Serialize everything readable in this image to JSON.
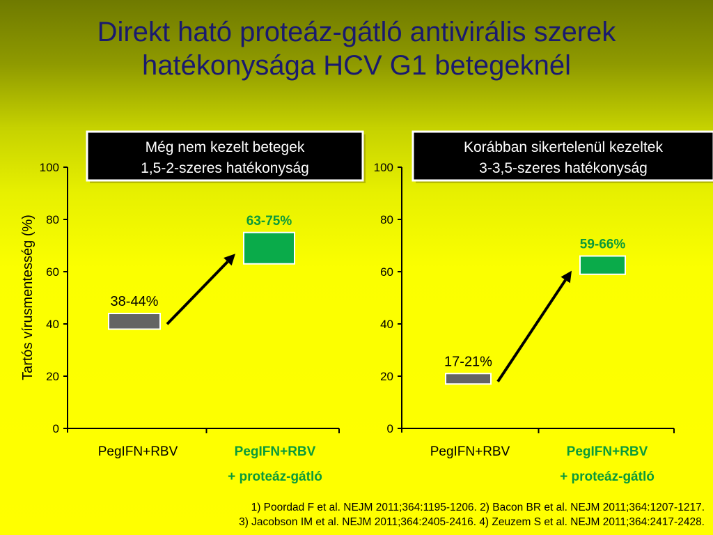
{
  "title": {
    "line1": "Direkt ható proteáz-gátló antivirális szerek",
    "line2": "hatékonysága HCV G1 betegeknél"
  },
  "ylabel": "Tartós vírusmentesség (%)",
  "colors": {
    "title": "#1a1a6e",
    "green_text": "#0a9a3a",
    "bar_gray": "#646464",
    "bar_green": "#0aab4a",
    "box_bg": "#000000",
    "box_text": "#ffffff"
  },
  "chart_data": [
    {
      "type": "bar",
      "panel_label_line1": "Még nem kezelt betegek",
      "panel_label_line2": "1,5-2-szeres hatékonyság",
      "y_ticks": [
        "0",
        "20",
        "40",
        "60",
        "80",
        "100"
      ],
      "ylim": [
        0,
        100
      ],
      "categories": [
        {
          "line1": "PegIFN+RBV",
          "line2": "",
          "color": "black"
        },
        {
          "line1": "PegIFN+RBV",
          "line2": "+ proteáz-gátló",
          "color": "green"
        }
      ],
      "ranges": [
        {
          "low": 38,
          "high": 44,
          "label": "38-44%",
          "fill": "gray"
        },
        {
          "low": 63,
          "high": 75,
          "label": "63-75%",
          "fill": "green"
        }
      ]
    },
    {
      "type": "bar",
      "panel_label_line1": "Korábban sikertelenül kezeltek",
      "panel_label_line2": "3-3,5-szeres hatékonyság",
      "y_ticks": [
        "0",
        "20",
        "40",
        "60",
        "80",
        "100"
      ],
      "ylim": [
        0,
        100
      ],
      "categories": [
        {
          "line1": "PegIFN+RBV",
          "line2": "",
          "color": "black"
        },
        {
          "line1": "PegIFN+RBV",
          "line2": "+ proteáz-gátló",
          "color": "green"
        }
      ],
      "ranges": [
        {
          "low": 17,
          "high": 21,
          "label": "17-21%",
          "fill": "gray"
        },
        {
          "low": 59,
          "high": 66,
          "label": "59-66%",
          "fill": "green"
        }
      ]
    }
  ],
  "references": {
    "line1": "1) Poordad F et al. NEJM 2011;364:1195-1206. 2) Bacon BR et al. NEJM 2011;364:1207-1217.",
    "line2": "3) Jacobson IM et al. NEJM 2011;364:2405-2416. 4) Zeuzem S et al. NEJM 2011;364:2417-2428."
  }
}
